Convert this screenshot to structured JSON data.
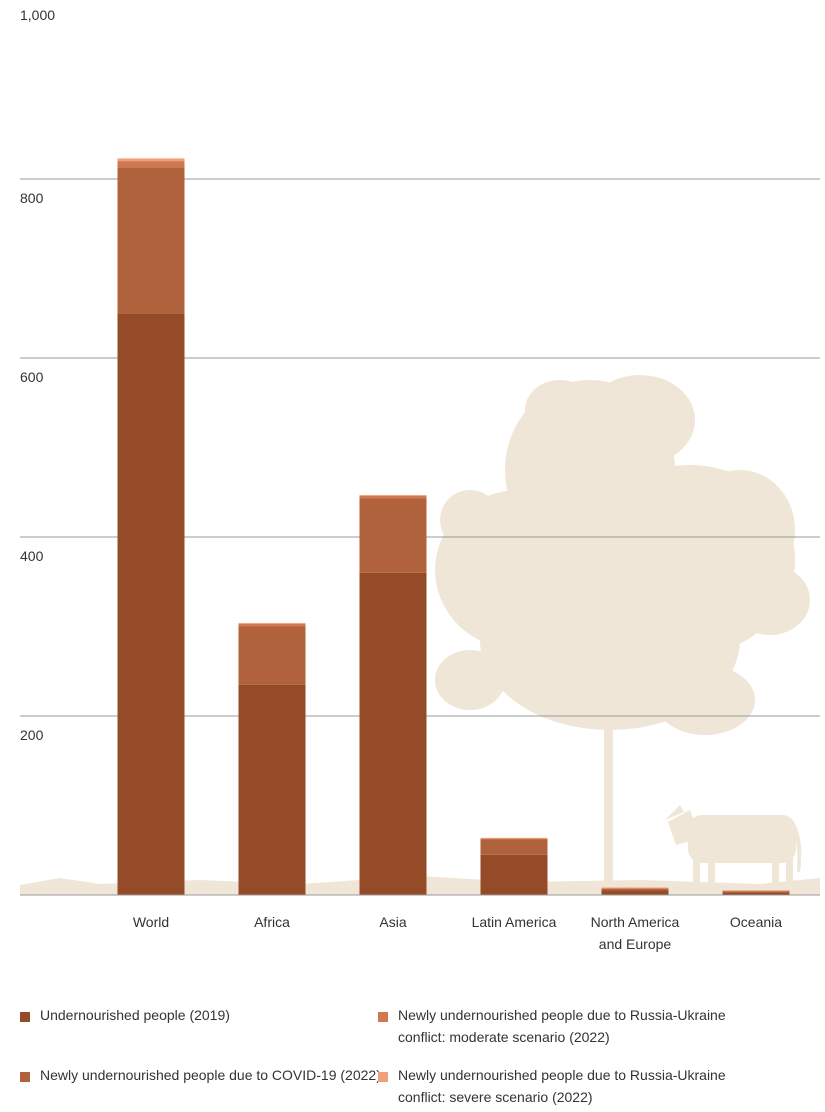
{
  "chart_data": {
    "type": "bar",
    "stacked": true,
    "ylim": [
      0,
      1000
    ],
    "yticks": [
      0,
      200,
      400,
      600,
      800,
      1000
    ],
    "ytick_labels": [
      "",
      "200",
      "400",
      "600",
      "800",
      "1,000"
    ],
    "grid": true,
    "legend_position": "bottom",
    "categories": [
      "World",
      "Africa",
      "Asia",
      "Latin America",
      "North America and Europe",
      "Oceania"
    ],
    "series": [
      {
        "name": "Undernourished people (2019)",
        "color": "#964b28",
        "values": [
          650,
          235,
          360,
          45,
          5,
          3
        ]
      },
      {
        "name": "Newly undernourished people due to COVID-19 (2022)",
        "color": "#b0623d",
        "values": [
          163,
          65,
          83,
          17,
          2,
          1
        ]
      },
      {
        "name": "Newly undernourished people due to Russia-Ukraine conflict: moderate scenario (2022)",
        "color": "#d07850",
        "values": [
          7,
          3,
          3,
          1,
          0.5,
          0.3
        ]
      },
      {
        "name": "Newly undernourished people due to Russia-Ukraine conflict: severe scenario (2022)",
        "color": "#f0a079",
        "values": [
          3,
          1,
          1,
          0.5,
          0.3,
          0.2
        ]
      }
    ],
    "category_label_lines": [
      [
        "World"
      ],
      [
        "Africa"
      ],
      [
        "Asia"
      ],
      [
        "Latin America"
      ],
      [
        "North America",
        "and Europe"
      ],
      [
        "Oceania"
      ]
    ],
    "background_illustration": [
      "tree-illustration",
      "cow-illustration",
      "grass-illustration"
    ],
    "background_color": "#efe6d8"
  },
  "legend": {
    "items": [
      {
        "label": "Undernourished people (2019)",
        "color": "#964b28"
      },
      {
        "label": "Newly undernourished people due to COVID-19 (2022)",
        "color": "#b0623d"
      },
      {
        "label": "Newly undernourished people due to Russia-Ukraine conflict: moderate scenario (2022)",
        "color": "#d07850"
      },
      {
        "label": "Newly undernourished people due to Russia-Ukraine conflict: severe scenario (2022)",
        "color": "#f0a079"
      }
    ]
  }
}
